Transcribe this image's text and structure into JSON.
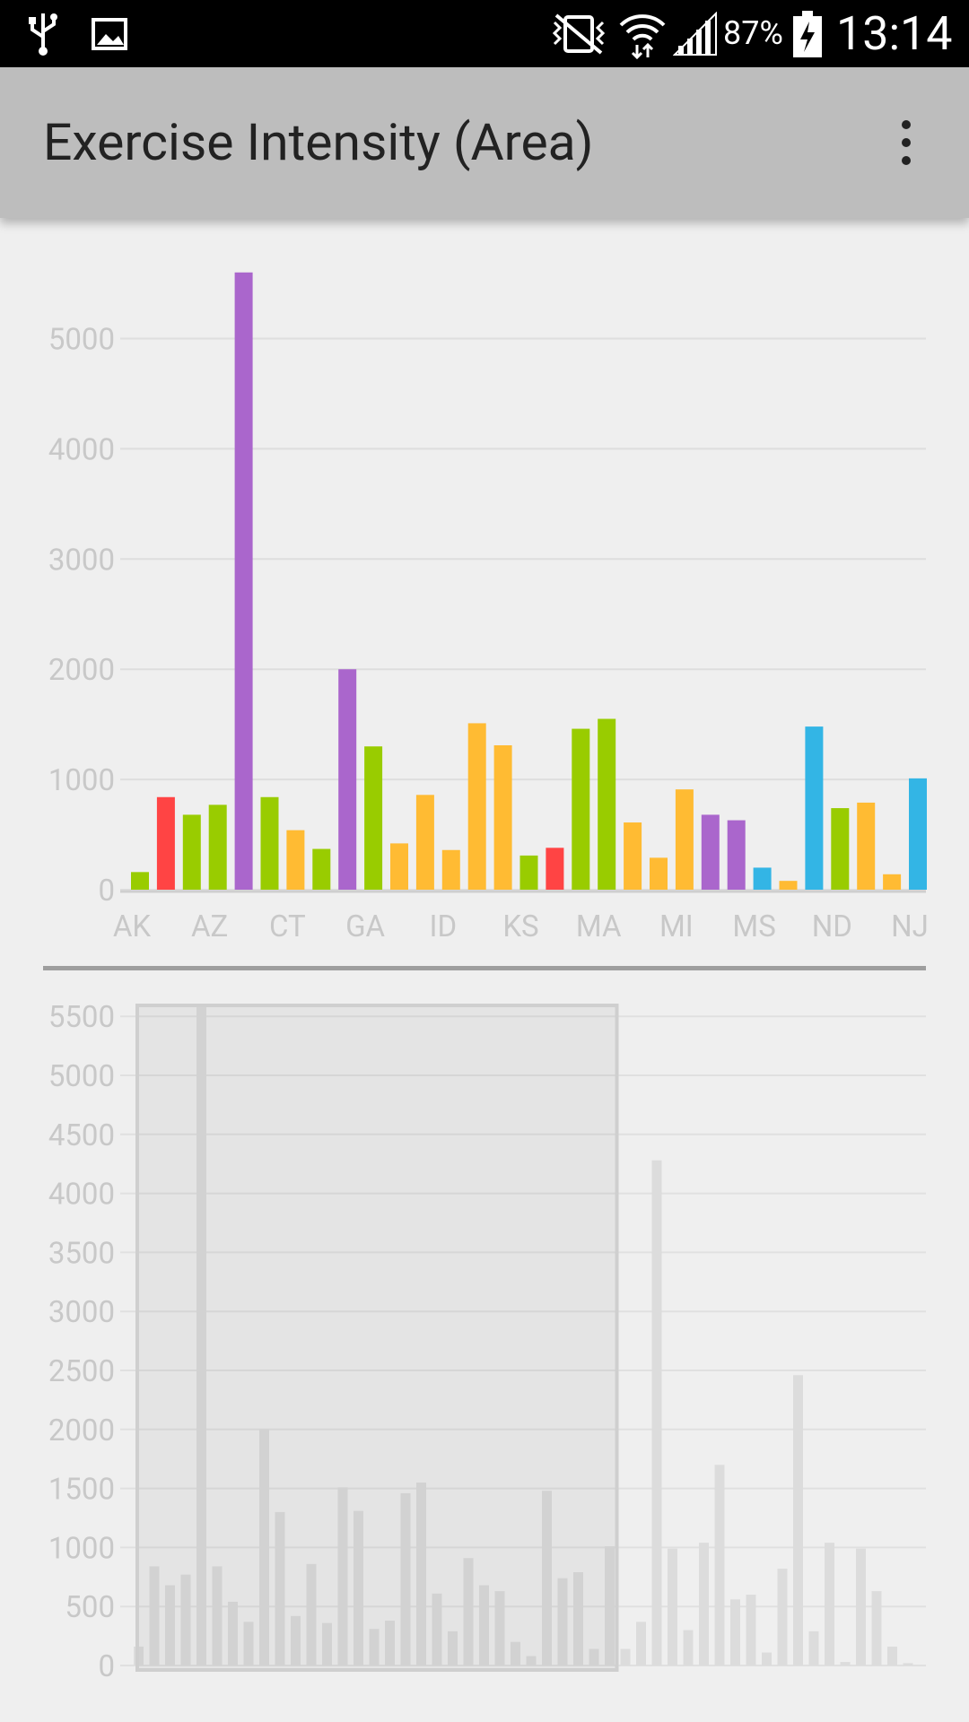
{
  "status_bar": {
    "icons": [
      "usb-icon",
      "image-icon",
      "vibrate-mute-icon",
      "wifi-icon",
      "signal-icon",
      "battery-charging-icon"
    ],
    "battery": "87%",
    "time": "13:14"
  },
  "action_bar": {
    "title": "Exercise Intensity (Area)",
    "overflow_icon": "more-vert-icon"
  },
  "chart_data": [
    {
      "type": "bar",
      "title": "",
      "ylim": [
        0,
        5600
      ],
      "yticks": [
        0,
        1000,
        2000,
        3000,
        4000,
        5000
      ],
      "xtick_labels": [
        "AK",
        "AZ",
        "CT",
        "GA",
        "ID",
        "KS",
        "MA",
        "MI",
        "MS",
        "ND",
        "NJ"
      ],
      "grid": true,
      "colors": {
        "purple": "#aa66cc",
        "green": "#99cc00",
        "orange": "#ffbb33",
        "red": "#ff4444",
        "blue": "#33b5e5"
      },
      "values": [
        160,
        840,
        680,
        770,
        5600,
        840,
        540,
        370,
        2000,
        1300,
        420,
        860,
        360,
        1510,
        1310,
        310,
        380,
        1460,
        1550,
        610,
        290,
        910,
        680,
        630,
        200,
        80,
        1480,
        740,
        790,
        140,
        1010
      ],
      "bar_colors": [
        "green",
        "red",
        "green",
        "green",
        "purple",
        "green",
        "orange",
        "green",
        "purple",
        "green",
        "orange",
        "orange",
        "orange",
        "orange",
        "orange",
        "green",
        "red",
        "green",
        "green",
        "orange",
        "orange",
        "orange",
        "purple",
        "purple",
        "blue",
        "orange",
        "blue",
        "green",
        "orange",
        "orange",
        "blue"
      ]
    },
    {
      "type": "bar",
      "title": "",
      "ylim": [
        0,
        5600
      ],
      "yticks": [
        0,
        500,
        1000,
        1500,
        2000,
        2500,
        3000,
        3500,
        4000,
        4500,
        5000,
        5500
      ],
      "grid": true,
      "selection_window_bars": [
        0,
        31
      ],
      "values": [
        160,
        840,
        680,
        770,
        5600,
        840,
        540,
        370,
        2000,
        1300,
        420,
        860,
        360,
        1510,
        1310,
        310,
        380,
        1460,
        1550,
        610,
        290,
        910,
        680,
        630,
        200,
        80,
        1480,
        740,
        790,
        140,
        1010,
        140,
        370,
        4280,
        990,
        300,
        1040,
        1700,
        560,
        600,
        110,
        820,
        2460,
        290,
        1040,
        30,
        990,
        630,
        160,
        20
      ]
    }
  ]
}
